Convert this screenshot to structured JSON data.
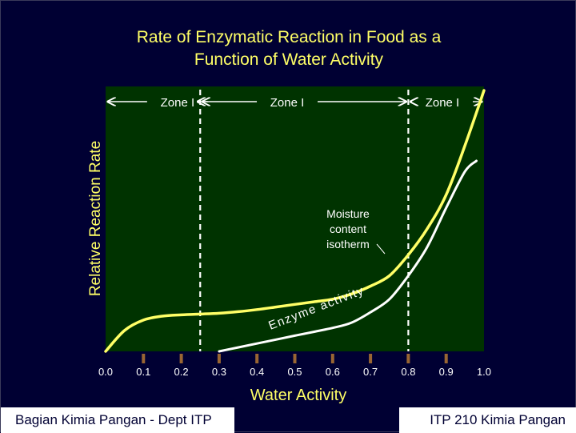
{
  "slide": {
    "title_line1": "Rate of Enzymatic Reaction in Food as a",
    "title_line2": "Function of Water Activity",
    "footer_left": "Bagian Kimia Pangan - Dept ITP",
    "footer_right": "ITP 210 Kimia Pangan"
  },
  "colors": {
    "background": "#000033",
    "plot_background": "#003300",
    "isotherm": "#ffff66",
    "enzyme_activity": "#ffffff",
    "title": "#ffff66",
    "tick_marker": "#996633"
  },
  "chart_data": {
    "type": "line",
    "xlabel": "Water Activity",
    "ylabel": "Relative Reaction Rate",
    "xlim": [
      0.0,
      1.0
    ],
    "x_ticks": [
      "0.0",
      "0.1",
      "0.2",
      "0.3",
      "0.4",
      "0.5",
      "0.6",
      "0.7",
      "0.8",
      "0.9",
      "1.0"
    ],
    "zone_boundaries": [
      0.25,
      0.8
    ],
    "zones": [
      {
        "label": "Zone I",
        "from": 0.0,
        "to": 0.25
      },
      {
        "label": "Zone I",
        "from": 0.25,
        "to": 0.8
      },
      {
        "label": "Zone I",
        "from": 0.8,
        "to": 1.0
      }
    ],
    "y_unit_note": "relative",
    "series": [
      {
        "key": "isotherm",
        "x": [
          0.0,
          0.05,
          0.1,
          0.15,
          0.2,
          0.25,
          0.3,
          0.35,
          0.4,
          0.45,
          0.5,
          0.55,
          0.6,
          0.65,
          0.7,
          0.75,
          0.8,
          0.85,
          0.9,
          0.95,
          1.0
        ],
        "y": [
          0.0,
          0.08,
          0.12,
          0.135,
          0.14,
          0.143,
          0.146,
          0.152,
          0.16,
          0.17,
          0.18,
          0.19,
          0.2,
          0.22,
          0.25,
          0.29,
          0.37,
          0.47,
          0.6,
          0.79,
          1.0
        ]
      },
      {
        "key": "enzyme",
        "x": [
          0.3,
          0.35,
          0.4,
          0.45,
          0.5,
          0.55,
          0.6,
          0.65,
          0.7,
          0.75,
          0.8,
          0.85,
          0.9,
          0.95,
          0.98
        ],
        "y": [
          0.0,
          0.015,
          0.03,
          0.045,
          0.06,
          0.075,
          0.09,
          0.11,
          0.15,
          0.2,
          0.29,
          0.4,
          0.55,
          0.69,
          0.73
        ]
      }
    ],
    "annotations": [
      {
        "text_lines": [
          "Moisture",
          "content",
          "isotherm"
        ]
      },
      {
        "text": "Enzyme activity"
      }
    ]
  }
}
